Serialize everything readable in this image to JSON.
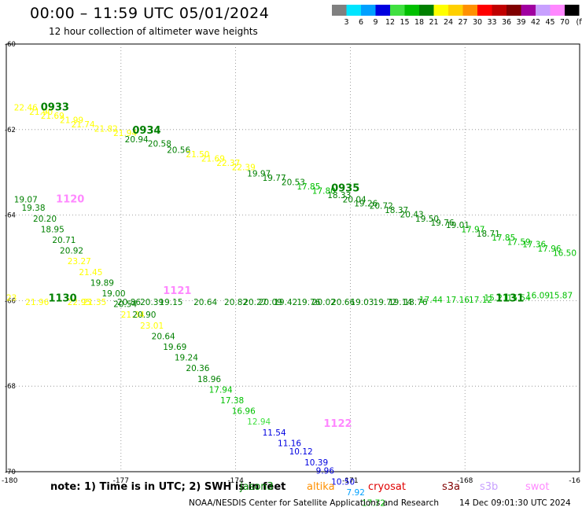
{
  "title": "00:00 – 11:59 UTC 05/01/2024",
  "subtitle": "12 hour collection of altimeter wave heights",
  "colorbar": {
    "labels": [
      "3",
      "6",
      "9",
      "12",
      "15",
      "18",
      "21",
      "24",
      "27",
      "30",
      "33",
      "36",
      "39",
      "42",
      "45",
      "70"
    ],
    "unit": "(ft)",
    "colors": [
      "#808080",
      "#00e5ff",
      "#00a0ff",
      "#0000e0",
      "#40e040",
      "#00c000",
      "#008000",
      "#ffff00",
      "#ffd000",
      "#ff9000",
      "#ff0000",
      "#c00000",
      "#800000",
      "#a000a0",
      "#c8a0ff",
      "#ff88ff",
      "#000000"
    ]
  },
  "note": "note:  1) Time is in UTC; 2) SWH is in feet",
  "satellites": [
    {
      "name": "jason3",
      "color": "#008000"
    },
    {
      "name": "altika",
      "color": "#ff9000"
    },
    {
      "name": "cryosat",
      "color": "#e00000"
    },
    {
      "name": "s3a",
      "color": "#800000"
    },
    {
      "name": "s3b",
      "color": "#c8a0ff"
    },
    {
      "name": "swot",
      "color": "#ff88ff"
    }
  ],
  "credit": "NOAA/NESDIS Center for Satellite Applications and Research",
  "timestamp": "14 Dec 09:01:30 UTC 2024",
  "chart_data": {
    "type": "scatter",
    "x_ticks": [
      "-180",
      "-177",
      "-174",
      "-171",
      "-168",
      "-16"
    ],
    "y_ticks": [
      "-60",
      "-62",
      "-64",
      "-66",
      "-68",
      "-70"
    ],
    "xlim": [
      -180,
      -165
    ],
    "ylim": [
      -70,
      -60
    ],
    "grid": true,
    "times": [
      {
        "text": "0933",
        "lon": -179.1,
        "lat": -61.55,
        "color": "#008000"
      },
      {
        "text": "0934",
        "lon": -176.7,
        "lat": -62.1,
        "color": "#008000"
      },
      {
        "text": "0935",
        "lon": -171.5,
        "lat": -63.45,
        "color": "#008000"
      },
      {
        "text": "1120",
        "lon": -178.7,
        "lat": -63.7,
        "color": "#ff88ff"
      },
      {
        "text": "1130",
        "lon": -178.9,
        "lat": -66.02,
        "color": "#008000"
      },
      {
        "text": "1121",
        "lon": -175.9,
        "lat": -65.85,
        "color": "#ff88ff"
      },
      {
        "text": "1131",
        "lon": -167.2,
        "lat": -66.02,
        "color": "#008000"
      },
      {
        "text": "1122",
        "lon": -171.7,
        "lat": -68.95,
        "color": "#ff88ff"
      }
    ],
    "series": [
      {
        "points": [
          {
            "t": "22.46",
            "lon": -179.8,
            "lat": -61.55
          },
          {
            "t": "21.90",
            "lon": -179.4,
            "lat": -61.65
          },
          {
            "t": "21.69",
            "lon": -179.1,
            "lat": -61.75
          },
          {
            "t": "21.99",
            "lon": -178.6,
            "lat": -61.85
          },
          {
            "t": "21.74",
            "lon": -178.3,
            "lat": -61.95
          },
          {
            "t": "21.82",
            "lon": -177.7,
            "lat": -62.05
          },
          {
            "t": "21.94",
            "lon": -177.2,
            "lat": -62.15
          },
          {
            "t": "20.94",
            "lon": -176.9,
            "lat": -62.3
          },
          {
            "t": "20.58",
            "lon": -176.3,
            "lat": -62.4
          },
          {
            "t": "20.56",
            "lon": -175.8,
            "lat": -62.55
          },
          {
            "t": "21.50",
            "lon": -175.3,
            "lat": -62.65
          },
          {
            "t": "21.69",
            "lon": -174.9,
            "lat": -62.75
          },
          {
            "t": "22.37",
            "lon": -174.5,
            "lat": -62.85
          },
          {
            "t": "22.39",
            "lon": -174.1,
            "lat": -62.95
          },
          {
            "t": "19.97",
            "lon": -173.7,
            "lat": -63.1
          },
          {
            "t": "19.77",
            "lon": -173.3,
            "lat": -63.2
          },
          {
            "t": "20.53",
            "lon": -172.8,
            "lat": -63.3
          },
          {
            "t": "17.85",
            "lon": -172.4,
            "lat": -63.4
          },
          {
            "t": "17.80",
            "lon": -172.0,
            "lat": -63.5
          },
          {
            "t": "18.33",
            "lon": -171.6,
            "lat": -63.6
          },
          {
            "t": "20.04",
            "lon": -171.2,
            "lat": -63.7
          },
          {
            "t": "19.26",
            "lon": -170.9,
            "lat": -63.8
          },
          {
            "t": "20.72",
            "lon": -170.5,
            "lat": -63.85
          },
          {
            "t": "18.37",
            "lon": -170.1,
            "lat": -63.95
          },
          {
            "t": "20.43",
            "lon": -169.7,
            "lat": -64.05
          },
          {
            "t": "19.50",
            "lon": -169.3,
            "lat": -64.15
          },
          {
            "t": "19.76",
            "lon": -168.9,
            "lat": -64.25
          },
          {
            "t": "19.01",
            "lon": -168.5,
            "lat": -64.3
          },
          {
            "t": "17.97",
            "lon": -168.1,
            "lat": -64.4
          },
          {
            "t": "18.71",
            "lon": -167.7,
            "lat": -64.5
          },
          {
            "t": "17.85",
            "lon": -167.3,
            "lat": -64.6
          },
          {
            "t": "17.59",
            "lon": -166.9,
            "lat": -64.7
          },
          {
            "t": "17.36",
            "lon": -166.5,
            "lat": -64.75
          },
          {
            "t": "17.96",
            "lon": -166.1,
            "lat": -64.85
          },
          {
            "t": "16.50",
            "lon": -165.7,
            "lat": -64.95
          }
        ]
      },
      {
        "points": [
          {
            "t": "19.07",
            "lon": -179.8,
            "lat": -63.7
          },
          {
            "t": "19.38",
            "lon": -179.6,
            "lat": -63.9
          },
          {
            "t": "20.20",
            "lon": -179.3,
            "lat": -64.15
          },
          {
            "t": "18.95",
            "lon": -179.1,
            "lat": -64.4
          },
          {
            "t": "20.71",
            "lon": -178.8,
            "lat": -64.65
          },
          {
            "t": "20.92",
            "lon": -178.6,
            "lat": -64.9
          },
          {
            "t": "23.27",
            "lon": -178.4,
            "lat": -65.15
          },
          {
            "t": "21.45",
            "lon": -178.1,
            "lat": -65.4
          },
          {
            "t": "19.89",
            "lon": -177.8,
            "lat": -65.65
          },
          {
            "t": "19.00",
            "lon": -177.5,
            "lat": -65.9
          },
          {
            "t": "20.54",
            "lon": -177.2,
            "lat": -66.15
          },
          {
            "t": "21.34",
            "lon": -177.0,
            "lat": -66.4
          },
          {
            "t": "20.90",
            "lon": -176.7,
            "lat": -66.4
          },
          {
            "t": "23.01",
            "lon": -176.5,
            "lat": -66.65
          },
          {
            "t": "20.64",
            "lon": -176.2,
            "lat": -66.9
          },
          {
            "t": "19.69",
            "lon": -175.9,
            "lat": -67.15
          },
          {
            "t": "19.24",
            "lon": -175.6,
            "lat": -67.4
          },
          {
            "t": "20.36",
            "lon": -175.3,
            "lat": -67.65
          },
          {
            "t": "18.96",
            "lon": -175.0,
            "lat": -67.9
          },
          {
            "t": "17.94",
            "lon": -174.7,
            "lat": -68.15
          },
          {
            "t": "17.38",
            "lon": -174.4,
            "lat": -68.4
          },
          {
            "t": "16.96",
            "lon": -174.1,
            "lat": -68.65
          },
          {
            "t": "12.94",
            "lon": -173.7,
            "lat": -68.9
          },
          {
            "t": "11.54",
            "lon": -173.3,
            "lat": -69.15
          },
          {
            "t": "11.16",
            "lon": -172.9,
            "lat": -69.4
          },
          {
            "t": "10.12",
            "lon": -172.6,
            "lat": -69.6
          },
          {
            "t": "10.39",
            "lon": -172.2,
            "lat": -69.85
          },
          {
            "t": "9.96",
            "lon": -171.9,
            "lat": -70.05
          },
          {
            "t": "10.50",
            "lon": -171.5,
            "lat": -70.3
          },
          {
            "t": "7.92",
            "lon": -171.1,
            "lat": -70.55
          },
          {
            "t": "17.72",
            "lon": -170.7,
            "lat": -70.8
          }
        ]
      },
      {
        "points": [
          {
            "t": "23",
            "lon": -180.0,
            "lat": -66.0
          },
          {
            "t": "21.96",
            "lon": -179.5,
            "lat": -66.1
          },
          {
            "t": "22.95",
            "lon": -178.4,
            "lat": -66.1
          },
          {
            "t": "21.35",
            "lon": -178.0,
            "lat": -66.1
          },
          {
            "t": "20.86",
            "lon": -177.1,
            "lat": -66.1
          },
          {
            "t": "20.39",
            "lon": -176.5,
            "lat": -66.1
          },
          {
            "t": "19.15",
            "lon": -176.0,
            "lat": -66.1
          },
          {
            "t": "20.64",
            "lon": -175.1,
            "lat": -66.1
          },
          {
            "t": "20.82",
            "lon": -174.3,
            "lat": -66.1
          },
          {
            "t": "20.27",
            "lon": -173.8,
            "lat": -66.1
          },
          {
            "t": "20.09",
            "lon": -173.4,
            "lat": -66.1
          },
          {
            "t": "19.42",
            "lon": -173.0,
            "lat": -66.1
          },
          {
            "t": "19.76",
            "lon": -172.4,
            "lat": -66.1
          },
          {
            "t": "20.02",
            "lon": -172.0,
            "lat": -66.1
          },
          {
            "t": "20.66",
            "lon": -171.5,
            "lat": -66.1
          },
          {
            "t": "19.03",
            "lon": -171.0,
            "lat": -66.1
          },
          {
            "t": "19.72",
            "lon": -170.4,
            "lat": -66.1
          },
          {
            "t": "19.14",
            "lon": -170.0,
            "lat": -66.1
          },
          {
            "t": "18.76",
            "lon": -169.6,
            "lat": -66.1
          },
          {
            "t": "17.44",
            "lon": -169.2,
            "lat": -66.05
          },
          {
            "t": "17.16",
            "lon": -168.5,
            "lat": -66.05
          },
          {
            "t": "17.12",
            "lon": -167.9,
            "lat": -66.05
          },
          {
            "t": "15.21",
            "lon": -167.5,
            "lat": -66.0
          },
          {
            "t": "15.54",
            "lon": -166.9,
            "lat": -66.0
          },
          {
            "t": "16.09",
            "lon": -166.4,
            "lat": -65.95
          },
          {
            "t": "15.87",
            "lon": -165.8,
            "lat": -65.95
          }
        ]
      }
    ]
  }
}
